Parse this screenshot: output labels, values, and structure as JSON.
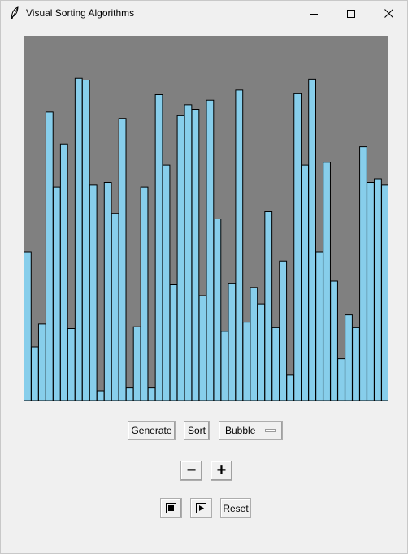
{
  "window": {
    "title": "Visual Sorting Algorithms",
    "icon": "feather-icon",
    "controls": [
      "minimize-icon",
      "maximize-icon",
      "close-icon"
    ]
  },
  "colors": {
    "canvas_background": "#808080",
    "bar_fill": "#87ceeb",
    "bar_outline": "#000000",
    "window_background": "#f0f0f0"
  },
  "controls": {
    "generate_label": "Generate",
    "sort_label": "Sort",
    "algorithm_selected": "Bubble",
    "decrease_label": "−",
    "increase_label": "+",
    "stop_icon": "stop-icon",
    "play_icon": "play-icon",
    "reset_label": "Reset"
  },
  "chart_data": {
    "type": "bar",
    "ylim": [
      0,
      400
    ],
    "values": [
      164,
      60,
      85,
      317,
      235,
      282,
      80,
      354,
      352,
      237,
      12,
      240,
      206,
      310,
      15,
      82,
      235,
      15,
      336,
      259,
      128,
      313,
      325,
      320,
      116,
      330,
      200,
      77,
      129,
      341,
      87,
      125,
      107,
      208,
      81,
      154,
      29,
      337,
      259,
      353,
      164,
      262,
      132,
      47,
      95,
      81,
      279,
      240,
      244,
      237
    ]
  }
}
